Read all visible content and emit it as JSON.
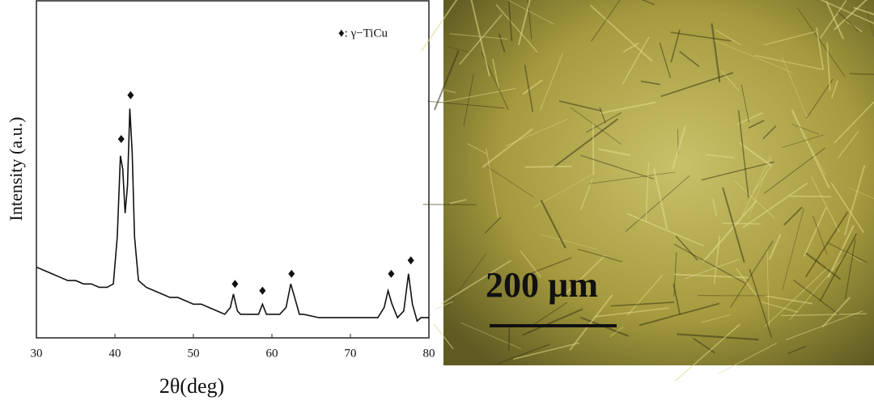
{
  "chart_data": {
    "type": "line",
    "xlabel": "2θ(deg)",
    "ylabel": "Intensity (a.u.)",
    "x": [
      30,
      31,
      32,
      33,
      34,
      35,
      36,
      37,
      38,
      39,
      39.8,
      40.3,
      40.7,
      41.0,
      41.3,
      41.6,
      41.9,
      42.2,
      42.5,
      43,
      44,
      45,
      46,
      47,
      48,
      49,
      50,
      51,
      52,
      53,
      54,
      54.7,
      55.1,
      55.6,
      56,
      57,
      58.3,
      58.8,
      59.3,
      60,
      61,
      61.8,
      62.4,
      62.9,
      63.5,
      64,
      66,
      68,
      70,
      72,
      73.5,
      74.3,
      74.8,
      75.3,
      76,
      76.8,
      77.4,
      77.9,
      78.5,
      79,
      80
    ],
    "values": [
      21,
      20,
      19,
      18,
      17,
      17,
      16,
      16,
      15,
      15,
      16,
      30,
      54,
      50,
      37,
      45,
      68,
      55,
      30,
      17,
      15,
      14,
      13,
      12,
      12,
      11,
      10,
      10,
      9,
      8,
      7,
      9,
      13,
      8,
      7,
      7,
      7,
      10,
      7,
      7,
      7,
      9,
      16,
      12,
      7,
      7,
      6,
      6,
      6,
      6,
      6,
      9,
      14,
      10,
      6,
      8,
      19,
      10,
      5,
      6,
      6
    ],
    "color": "#111111",
    "xlim": [
      30,
      80
    ],
    "xticks": [
      30,
      40,
      50,
      60,
      70,
      80
    ],
    "ylim": [
      0,
      100
    ],
    "markers": {
      "label": "♦: γ−TiCu",
      "x": [
        40.8,
        42,
        55.3,
        58.8,
        62.5,
        75.2,
        77.7
      ],
      "y": [
        59,
        72,
        16,
        14,
        19,
        19,
        23
      ]
    }
  },
  "image": {
    "scale_bar": "200 µm"
  }
}
